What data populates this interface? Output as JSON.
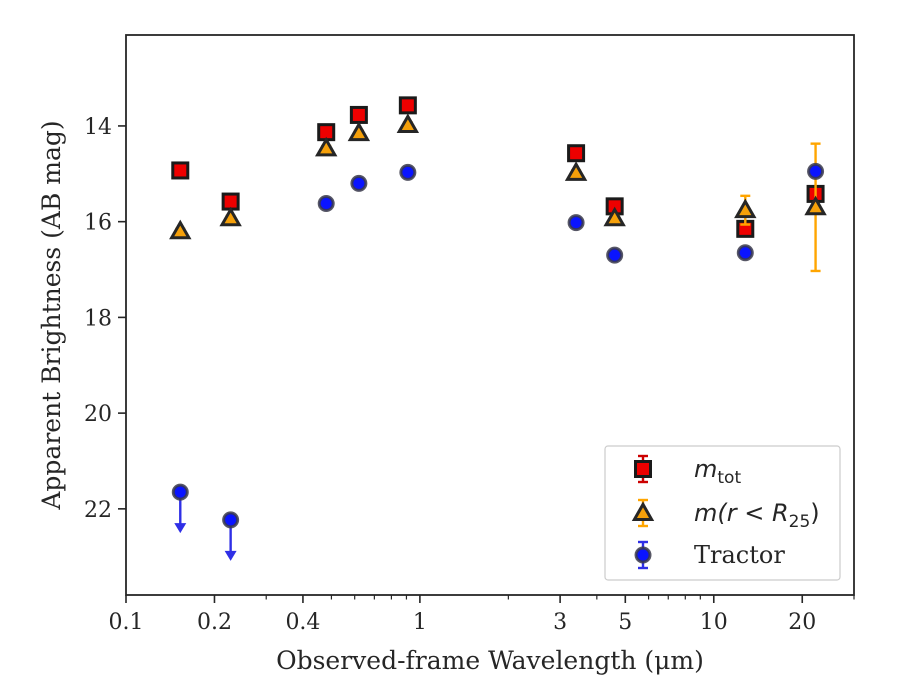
{
  "chart_data": {
    "type": "scatter",
    "xlabel": "Observed-frame Wavelength (μm)",
    "ylabel": "Apparent Brightness (AB mag)",
    "x_scale": "log",
    "xlim": [
      0.1,
      30
    ],
    "ylim": [
      23.8,
      12.1
    ],
    "y_inverted": true,
    "x_ticks": [
      {
        "value": 0.1,
        "label": "0.1"
      },
      {
        "value": 0.2,
        "label": "0.2"
      },
      {
        "value": 0.4,
        "label": "0.4"
      },
      {
        "value": 1,
        "label": "1"
      },
      {
        "value": 3,
        "label": "3"
      },
      {
        "value": 5,
        "label": "5"
      },
      {
        "value": 10,
        "label": "10"
      },
      {
        "value": 20,
        "label": "20"
      }
    ],
    "y_ticks": [
      {
        "value": 14,
        "label": "14"
      },
      {
        "value": 16,
        "label": "16"
      },
      {
        "value": 18,
        "label": "18"
      },
      {
        "value": 20,
        "label": "20"
      },
      {
        "value": 22,
        "label": "22"
      }
    ],
    "grid": false,
    "legend": {
      "placement": "bottom-right"
    },
    "series": [
      {
        "name": "m_tot",
        "legend_main": "m",
        "legend_sub": "tot",
        "marker": "square",
        "color": "#ee0000",
        "edge_color": "#1a1a1a",
        "error_color": "#cc0000",
        "points": [
          {
            "x": 0.153,
            "y": 14.93,
            "err": 0.05
          },
          {
            "x": 0.227,
            "y": 15.58,
            "err": 0.05
          },
          {
            "x": 0.48,
            "y": 14.13,
            "err": 0.05
          },
          {
            "x": 0.62,
            "y": 13.77,
            "err": 0.05
          },
          {
            "x": 0.91,
            "y": 13.57,
            "err": 0.05
          },
          {
            "x": 3.4,
            "y": 14.57,
            "err": 0.05
          },
          {
            "x": 4.6,
            "y": 15.68,
            "err": 0.05
          },
          {
            "x": 12.8,
            "y": 16.15,
            "err": 0.05
          },
          {
            "x": 22.2,
            "y": 15.42,
            "err": 0.05
          }
        ]
      },
      {
        "name": "m(r<R_25)",
        "legend_main": "m(r < R",
        "legend_sub": "25",
        "legend_tail": ")",
        "marker": "triangle",
        "color": "#f5a00a",
        "edge_color": "#262626",
        "error_color": "#ffa500",
        "points": [
          {
            "x": 0.153,
            "y": 16.2,
            "err": 0.05
          },
          {
            "x": 0.227,
            "y": 15.93,
            "err": 0.05
          },
          {
            "x": 0.48,
            "y": 14.47,
            "err": 0.05
          },
          {
            "x": 0.62,
            "y": 14.15,
            "err": 0.05
          },
          {
            "x": 0.91,
            "y": 13.98,
            "err": 0.05
          },
          {
            "x": 3.4,
            "y": 14.98,
            "err": 0.05
          },
          {
            "x": 4.6,
            "y": 15.93,
            "err": 0.05
          },
          {
            "x": 12.8,
            "y": 15.76,
            "err": 0.3
          },
          {
            "x": 22.2,
            "y": 15.7,
            "err": 1.33
          }
        ]
      },
      {
        "name": "Tractor",
        "legend_main": "Tractor",
        "marker": "circle",
        "color": "#0a14ff",
        "edge_color": "#3a3a4a",
        "error_color": "#2f2fe6",
        "points": [
          {
            "x": 0.153,
            "y": 21.65,
            "err": 0.05,
            "upper_limit": true
          },
          {
            "x": 0.227,
            "y": 22.23,
            "err": 0.05,
            "upper_limit": true
          },
          {
            "x": 0.48,
            "y": 15.62,
            "err": 0.05
          },
          {
            "x": 0.62,
            "y": 15.2,
            "err": 0.05
          },
          {
            "x": 0.91,
            "y": 14.97,
            "err": 0.05
          },
          {
            "x": 3.4,
            "y": 16.02,
            "err": 0.05
          },
          {
            "x": 4.6,
            "y": 16.7,
            "err": 0.05
          },
          {
            "x": 12.8,
            "y": 16.65,
            "err": 0.05
          },
          {
            "x": 22.2,
            "y": 14.95,
            "err": 0.05
          }
        ]
      }
    ]
  }
}
